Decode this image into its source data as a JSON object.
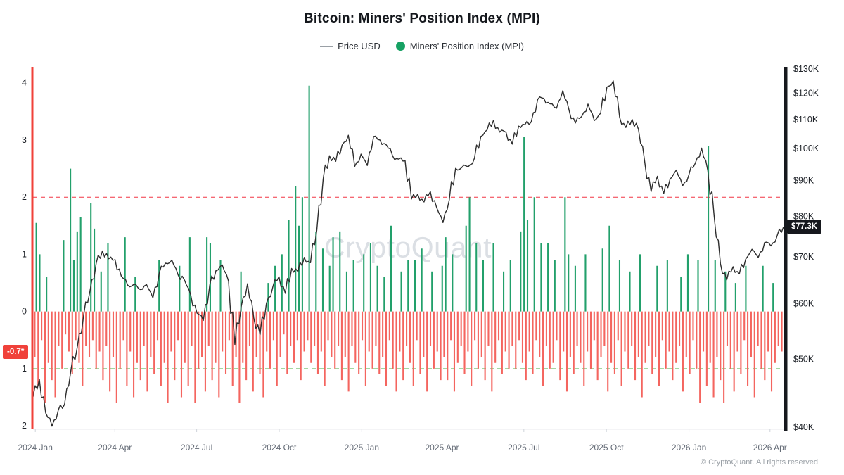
{
  "title": "Bitcoin: Miners' Position Index (MPI)",
  "legend": [
    {
      "label": "Price USD",
      "swatch": "line-icon",
      "color": "#9aa0a6"
    },
    {
      "label": "Miners' Position Index (MPI)",
      "swatch": "dot-icon",
      "color": "#16a163"
    }
  ],
  "watermark": "CryptoQuant",
  "footer": "© CryptoQuant. All rights reserved",
  "badges": {
    "left": "-0.7*",
    "right": "$77.3K"
  },
  "colors": {
    "mpi_positive": "#22a06b",
    "mpi_negative": "#f4655f",
    "price_line": "#2d2d2d",
    "left_axis_line": "#f0413a",
    "right_axis_line": "#16181d",
    "ref_line_upper": "#f23645",
    "ref_line_lower": "#6abf69"
  },
  "chart_data": {
    "type": "mixed",
    "title": "Bitcoin: Miners' Position Index (MPI)",
    "x_range": [
      "2024 Jan",
      "2026 Apr"
    ],
    "left_axis": {
      "name": "Miners' Position Index (MPI)",
      "ticks": [
        4,
        3,
        2,
        1,
        0,
        -1,
        -2
      ],
      "range": [
        -2.06,
        4.28
      ],
      "current_value": -0.7
    },
    "right_axis": {
      "name": "Price USD",
      "scale": "log",
      "tick_labels": [
        "$130K",
        "$120K",
        "$110K",
        "$100K",
        "$90K",
        "$80K",
        "$70K",
        "$60K",
        "$50K",
        "$40K"
      ],
      "tick_values": [
        130,
        120,
        110,
        100,
        90,
        80,
        70,
        60,
        50,
        40
      ],
      "range": [
        39.7,
        130.9
      ],
      "current_value": 77.3
    },
    "x_axis": {
      "ticks": [
        {
          "label": "2024 Jan",
          "pos": 0.003
        },
        {
          "label": "2024 Apr",
          "pos": 0.109
        },
        {
          "label": "2024 Jul",
          "pos": 0.218
        },
        {
          "label": "2024 Oct",
          "pos": 0.328
        },
        {
          "label": "2025 Jan",
          "pos": 0.438
        },
        {
          "label": "2025 Apr",
          "pos": 0.545
        },
        {
          "label": "2025 Jul",
          "pos": 0.654
        },
        {
          "label": "2025 Oct",
          "pos": 0.764
        },
        {
          "label": "2026 Jan",
          "pos": 0.874
        },
        {
          "label": "2026 Apr",
          "pos": 0.982
        }
      ]
    },
    "reference_lines": [
      {
        "axis": "left",
        "value": 2,
        "color": "#f23645",
        "style": "dashed"
      },
      {
        "axis": "left",
        "value": -1,
        "color": "#6abf69",
        "style": "dashed"
      }
    ],
    "series": [
      {
        "name": "Price USD",
        "type": "line",
        "axis": "right",
        "unit": "thousand USD",
        "cadence": "weekly 2024-01 to 2026-04",
        "values": [
          44.2,
          46.8,
          41.9,
          40.1,
          42.3,
          43.1,
          48.2,
          52.0,
          57.5,
          62.4,
          68.5,
          71.4,
          69.6,
          69.4,
          65.7,
          63.8,
          64.0,
          62.9,
          63.9,
          61.2,
          66.3,
          68.6,
          69.3,
          66.0,
          64.9,
          61.8,
          58.2,
          56.8,
          63.7,
          66.9,
          68.2,
          64.6,
          52.5,
          59.4,
          64.1,
          57.3,
          54.2,
          60.1,
          63.3,
          65.6,
          62.1,
          67.4,
          66.7,
          69.9,
          68.7,
          76.5,
          90.5,
          97.7,
          95.9,
          101.2,
          104.5,
          94.3,
          98.2,
          94.6,
          104.1,
          102.9,
          101.3,
          97.7,
          96.6,
          96.1,
          84.7,
          86.1,
          83.9,
          86.8,
          82.4,
          78.4,
          84.5,
          93.7,
          94.0,
          94.2,
          96.9,
          104.1,
          106.4,
          109.7,
          105.6,
          105.5,
          101.5,
          107.7,
          108.2,
          109.2,
          117.5,
          118.0,
          115.9,
          114.2,
          121.0,
          113.5,
          108.8,
          111.2,
          115.8,
          109.7,
          112.4,
          122.5,
          125.0,
          111.0,
          107.2,
          110.1,
          106.5,
          95.7,
          86.8,
          91.3,
          86.2,
          90.4,
          93.2,
          88.5,
          91.8,
          95.3,
          100.2,
          93.0,
          80.0,
          68.5,
          64.9,
          67.8,
          66.2,
          69.5,
          71.8,
          69.9,
          73.4,
          72.6,
          75.1,
          77.3
        ]
      },
      {
        "name": "Miners' Position Index (MPI)",
        "type": "bar",
        "axis": "left",
        "negative_color": "#f4655f",
        "positive_color": "#22a06b",
        "cadence": "approx 3.8-day bins 2024-01 to 2026-04",
        "red_values": [
          -0.8,
          -1.3,
          -0.5,
          -1.6,
          -0.9,
          -1.2,
          -1.5,
          -0.6,
          -1.0,
          -0.4,
          -0.7,
          -1.1,
          -0.5,
          -0.9,
          -1.3,
          -0.6,
          -0.8,
          -0.5,
          -1.0,
          -0.7,
          -1.2,
          -0.6,
          -1.4,
          -0.8,
          -1.6,
          -1.0,
          -0.5,
          -1.3,
          -0.7,
          -1.5,
          -0.9,
          -1.2,
          -0.6,
          -1.4,
          -0.8,
          -1.1,
          -0.5,
          -1.3,
          -0.9,
          -1.6,
          -0.7,
          -1.2,
          -0.5,
          -1.5,
          -0.9,
          -1.3,
          -0.6,
          -1.6,
          -1.0,
          -0.8,
          -1.4,
          -0.6,
          -1.2,
          -0.9,
          -1.5,
          -0.7,
          -1.1,
          -0.5,
          -1.3,
          -0.8,
          -1.6,
          -0.9,
          -1.2,
          -0.6,
          -1.4,
          -0.8,
          -1.1,
          -1.5,
          -0.7,
          -1.0,
          -0.5,
          -1.3,
          -0.8,
          -0.4,
          -1.1,
          -0.6,
          -0.9,
          -0.5,
          -1.2,
          -0.7,
          -0.5,
          -0.9,
          -0.6,
          -1.1,
          -0.7,
          -1.3,
          -0.5,
          -0.8,
          -1.0,
          -0.6,
          -1.2,
          -0.8,
          -1.4,
          -0.6,
          -0.9,
          -1.1,
          -0.5,
          -1.3,
          -0.7,
          -1.0,
          -0.6,
          -1.1,
          -0.8,
          -1.3,
          -0.5,
          -1.0,
          -1.4,
          -0.7,
          -1.2,
          -0.6,
          -0.9,
          -1.3,
          -0.5,
          -1.1,
          -0.8,
          -1.4,
          -0.6,
          -1.0,
          -0.7,
          -1.2,
          -0.8,
          -1.2,
          -0.5,
          -1.4,
          -0.9,
          -0.6,
          -1.1,
          -0.7,
          -1.3,
          -0.5,
          -1.0,
          -0.8,
          -1.2,
          -0.6,
          -1.4,
          -0.9,
          -0.5,
          -1.1,
          -0.7,
          -1.0,
          -0.6,
          -1.0,
          -0.5,
          -0.9,
          -1.2,
          -0.7,
          -1.1,
          -0.5,
          -0.8,
          -1.3,
          -0.6,
          -1.0,
          -0.9,
          -0.5,
          -1.2,
          -0.7,
          -1.4,
          -0.8,
          -1.1,
          -0.6,
          -0.9,
          -1.3,
          -0.7,
          -1.0,
          -0.5,
          -1.2,
          -0.8,
          -0.6,
          -1.4,
          -0.9,
          -1.1,
          -0.5,
          -1.3,
          -0.7,
          -1.0,
          -0.6,
          -1.2,
          -0.8,
          -1.5,
          -0.9,
          -0.6,
          -1.1,
          -0.8,
          -1.3,
          -0.5,
          -1.0,
          -0.7,
          -1.2,
          -0.9,
          -0.6,
          -1.4,
          -0.8,
          -1.1,
          -0.5,
          -1.0,
          -1.6,
          -0.7,
          -1.3,
          -0.9,
          -1.5,
          -0.8,
          -1.2,
          -1.6,
          -0.6,
          -1.0,
          -1.4,
          -0.7,
          -1.1,
          -0.5,
          -1.3,
          -0.8,
          -1.5,
          -0.6,
          -1.0,
          -1.2,
          -0.7,
          -1.4,
          -0.9,
          -0.6,
          -0.7
        ],
        "green_spikes": [
          [
            0,
            1.55
          ],
          [
            1,
            1.0
          ],
          [
            3,
            0.6
          ],
          [
            8,
            1.25
          ],
          [
            10,
            2.5
          ],
          [
            11,
            0.9
          ],
          [
            12,
            1.4
          ],
          [
            13,
            1.65
          ],
          [
            16,
            1.9
          ],
          [
            17,
            1.45
          ],
          [
            19,
            0.7
          ],
          [
            21,
            1.2
          ],
          [
            26,
            1.3
          ],
          [
            29,
            0.6
          ],
          [
            36,
            0.9
          ],
          [
            42,
            0.8
          ],
          [
            45,
            1.3
          ],
          [
            50,
            1.3
          ],
          [
            51,
            1.2
          ],
          [
            54,
            0.9
          ],
          [
            60,
            0.7
          ],
          [
            68,
            0.5
          ],
          [
            70,
            0.8
          ],
          [
            72,
            1.0
          ],
          [
            74,
            1.6
          ],
          [
            76,
            2.2
          ],
          [
            77,
            1.5
          ],
          [
            78,
            2.0
          ],
          [
            80,
            3.95
          ],
          [
            82,
            1.4
          ],
          [
            84,
            1.1
          ],
          [
            86,
            0.8
          ],
          [
            87,
            1.3
          ],
          [
            89,
            1.4
          ],
          [
            91,
            0.7
          ],
          [
            93,
            0.9
          ],
          [
            96,
            1.0
          ],
          [
            98,
            1.2
          ],
          [
            100,
            0.8
          ],
          [
            102,
            0.6
          ],
          [
            104,
            1.5
          ],
          [
            107,
            0.7
          ],
          [
            109,
            0.9
          ],
          [
            111,
            0.9
          ],
          [
            113,
            1.1
          ],
          [
            116,
            0.7
          ],
          [
            119,
            0.8
          ],
          [
            120,
            1.3
          ],
          [
            122,
            1.0
          ],
          [
            126,
            1.5
          ],
          [
            127,
            2.0
          ],
          [
            129,
            1.2
          ],
          [
            131,
            0.9
          ],
          [
            134,
            1.2
          ],
          [
            137,
            0.7
          ],
          [
            139,
            0.9
          ],
          [
            142,
            1.4
          ],
          [
            143,
            3.05
          ],
          [
            144,
            1.6
          ],
          [
            146,
            2.0
          ],
          [
            148,
            1.2
          ],
          [
            150,
            1.2
          ],
          [
            152,
            0.9
          ],
          [
            155,
            2.0
          ],
          [
            156,
            1.0
          ],
          [
            158,
            0.8
          ],
          [
            161,
            1.0
          ],
          [
            166,
            1.1
          ],
          [
            168,
            1.5
          ],
          [
            171,
            0.9
          ],
          [
            174,
            0.7
          ],
          [
            177,
            1.0
          ],
          [
            182,
            0.8
          ],
          [
            185,
            0.9
          ],
          [
            189,
            0.6
          ],
          [
            191,
            1.0
          ],
          [
            194,
            0.9
          ],
          [
            197,
            2.9
          ],
          [
            199,
            0.9
          ],
          [
            202,
            0.7
          ],
          [
            205,
            0.5
          ],
          [
            208,
            0.8
          ],
          [
            213,
            0.8
          ],
          [
            216,
            0.5
          ]
        ]
      }
    ]
  }
}
